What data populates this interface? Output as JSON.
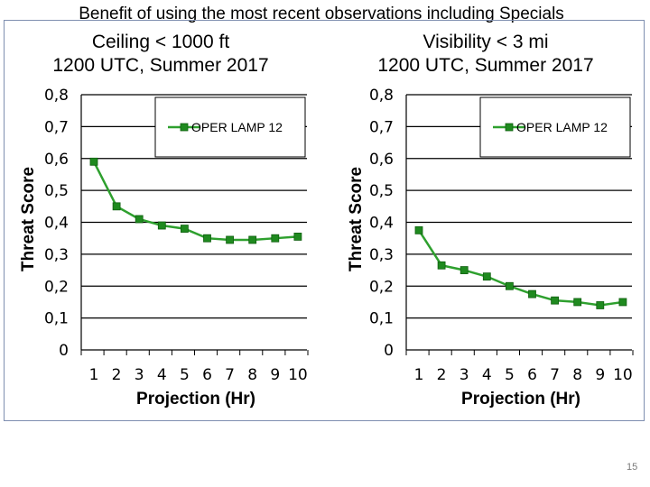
{
  "slide": {
    "title": "Benefit of using the most recent observations including Specials",
    "page_number": "15"
  },
  "colors": {
    "series": "#2ea02e",
    "marker": "#1f8a1f",
    "frame": "#7f8fb0"
  },
  "chart_data": [
    {
      "type": "line",
      "title_line1": "Ceiling < 1000 ft",
      "title_line2": "1200 UTC, Summer 2017",
      "xlabel": "Projection (Hr)",
      "ylabel": "Threat Score",
      "categories": [
        "1",
        "2",
        "3",
        "4",
        "5",
        "6",
        "7",
        "8",
        "9",
        "10"
      ],
      "y_tick_labels": [
        "0",
        "0,1",
        "0,2",
        "0,3",
        "0,4",
        "0,5",
        "0,6",
        "0,7",
        "0,8"
      ],
      "ylim": [
        0,
        0.8
      ],
      "grid": true,
      "legend_position": "top-right",
      "series": [
        {
          "name": "OPER LAMP 12",
          "values": [
            0.59,
            0.45,
            0.41,
            0.39,
            0.38,
            0.35,
            0.345,
            0.345,
            0.35,
            0.355
          ]
        }
      ]
    },
    {
      "type": "line",
      "title_line1": "Visibility < 3 mi",
      "title_line2": "1200 UTC, Summer 2017",
      "xlabel": "Projection (Hr)",
      "ylabel": "Threat Score",
      "categories": [
        "1",
        "2",
        "3",
        "4",
        "5",
        "6",
        "7",
        "8",
        "9",
        "10"
      ],
      "y_tick_labels": [
        "0",
        "0,1",
        "0,2",
        "0,3",
        "0,4",
        "0,5",
        "0,6",
        "0,7",
        "0,8"
      ],
      "ylim": [
        0,
        0.8
      ],
      "grid": true,
      "legend_position": "top-right",
      "series": [
        {
          "name": "OPER LAMP 12",
          "values": [
            0.375,
            0.265,
            0.25,
            0.23,
            0.2,
            0.175,
            0.155,
            0.15,
            0.14,
            0.15
          ]
        }
      ]
    }
  ]
}
